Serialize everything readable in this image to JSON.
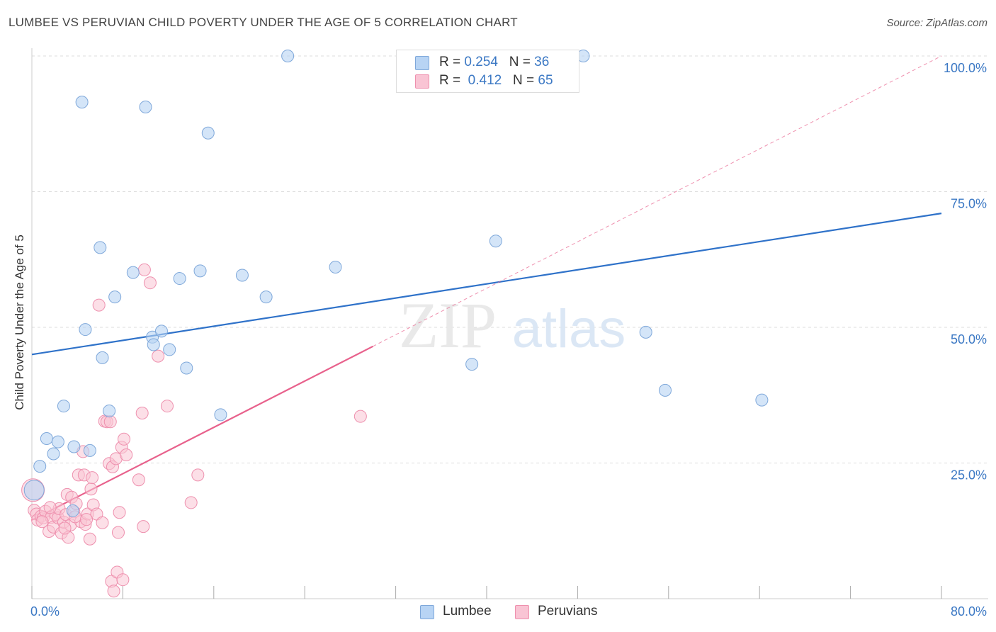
{
  "header": {
    "title": "LUMBEE VS PERUVIAN CHILD POVERTY UNDER THE AGE OF 5 CORRELATION CHART",
    "source": "Source: ZipAtlas.com"
  },
  "legend": {
    "rows": [
      {
        "r_label": "R = ",
        "r_value": "0.254",
        "n_label": "N = ",
        "n_value": "36"
      },
      {
        "r_label": "R = ",
        "r_value": "0.412",
        "n_label": "N = ",
        "n_value": "65"
      }
    ]
  },
  "bottom_legend": [
    "Lumbee",
    "Peruvians"
  ],
  "watermark": {
    "zip": "ZIP",
    "atlas": "atlas"
  },
  "colors": {
    "lumbee_fill": "#b8d4f4",
    "lumbee_stroke": "#7fa8da",
    "lumbee_line": "#2f72c9",
    "peru_fill": "#f9c4d4",
    "peru_stroke": "#ee90ae",
    "peru_line": "#e8618c",
    "grid": "#dddddd",
    "tick_label": "#3b78c4"
  },
  "chart_data": {
    "type": "scatter",
    "title": "LUMBEE VS PERUVIAN CHILD POVERTY UNDER THE AGE OF 5 CORRELATION CHART",
    "xlabel": "",
    "ylabel": "Child Poverty Under the Age of 5",
    "xlim": [
      0,
      80
    ],
    "ylim": [
      0,
      100
    ],
    "x_tick_labels": [
      "0.0%",
      "80.0%"
    ],
    "y_ticks": [
      25,
      50,
      75,
      100
    ],
    "y_tick_labels": [
      "25.0%",
      "50.0%",
      "75.0%",
      "100.0%"
    ],
    "grid": true,
    "legend_position": "top-center",
    "series": [
      {
        "name": "Lumbee",
        "points": [
          [
            0.2,
            20.0
          ],
          [
            0.7,
            24.4
          ],
          [
            1.3,
            29.5
          ],
          [
            1.9,
            26.7
          ],
          [
            2.3,
            28.9
          ],
          [
            2.8,
            35.5
          ],
          [
            3.7,
            28.0
          ],
          [
            3.6,
            16.2
          ],
          [
            4.4,
            91.5
          ],
          [
            4.7,
            49.6
          ],
          [
            5.1,
            27.3
          ],
          [
            6.0,
            64.7
          ],
          [
            6.2,
            44.4
          ],
          [
            6.8,
            34.6
          ],
          [
            7.3,
            55.6
          ],
          [
            8.9,
            60.1
          ],
          [
            10.0,
            90.6
          ],
          [
            10.6,
            48.2
          ],
          [
            10.7,
            46.8
          ],
          [
            11.4,
            49.3
          ],
          [
            12.1,
            45.9
          ],
          [
            13.0,
            59.0
          ],
          [
            13.6,
            42.5
          ],
          [
            14.8,
            60.4
          ],
          [
            15.5,
            85.8
          ],
          [
            16.6,
            33.9
          ],
          [
            18.5,
            59.6
          ],
          [
            20.6,
            55.6
          ],
          [
            22.5,
            100.0
          ],
          [
            26.7,
            61.1
          ],
          [
            38.7,
            43.2
          ],
          [
            40.8,
            65.9
          ],
          [
            48.5,
            100.0
          ],
          [
            54.0,
            49.1
          ],
          [
            55.7,
            38.4
          ],
          [
            64.2,
            36.6
          ]
        ],
        "trend": {
          "x": [
            0,
            80
          ],
          "y": [
            45.0,
            71.0
          ]
        }
      },
      {
        "name": "Peruvians",
        "points": [
          [
            0.1,
            20.0
          ],
          [
            0.2,
            16.3
          ],
          [
            0.4,
            15.6
          ],
          [
            0.5,
            14.5
          ],
          [
            0.8,
            15.2
          ],
          [
            1.0,
            14.9
          ],
          [
            1.2,
            16.1
          ],
          [
            1.5,
            12.4
          ],
          [
            1.7,
            15.0
          ],
          [
            1.9,
            13.2
          ],
          [
            2.1,
            15.5
          ],
          [
            2.3,
            14.9
          ],
          [
            2.4,
            16.6
          ],
          [
            2.6,
            12.1
          ],
          [
            2.8,
            14.1
          ],
          [
            3.0,
            15.5
          ],
          [
            3.1,
            19.2
          ],
          [
            3.2,
            11.3
          ],
          [
            3.4,
            13.6
          ],
          [
            3.5,
            18.7
          ],
          [
            3.7,
            16.0
          ],
          [
            3.9,
            17.5
          ],
          [
            4.1,
            22.8
          ],
          [
            4.3,
            14.2
          ],
          [
            4.5,
            27.1
          ],
          [
            4.6,
            22.8
          ],
          [
            4.7,
            13.7
          ],
          [
            4.9,
            15.6
          ],
          [
            5.1,
            11.0
          ],
          [
            5.2,
            20.2
          ],
          [
            5.3,
            22.3
          ],
          [
            5.4,
            17.3
          ],
          [
            5.7,
            15.6
          ],
          [
            5.9,
            54.1
          ],
          [
            6.2,
            14.0
          ],
          [
            6.4,
            32.7
          ],
          [
            6.6,
            32.6
          ],
          [
            6.8,
            24.9
          ],
          [
            6.9,
            32.6
          ],
          [
            7.0,
            3.2
          ],
          [
            7.1,
            24.3
          ],
          [
            7.2,
            1.4
          ],
          [
            7.4,
            25.8
          ],
          [
            7.5,
            4.9
          ],
          [
            7.6,
            12.2
          ],
          [
            7.7,
            15.9
          ],
          [
            7.9,
            27.9
          ],
          [
            8.0,
            3.5
          ],
          [
            8.1,
            29.4
          ],
          [
            8.3,
            26.5
          ],
          [
            9.4,
            21.9
          ],
          [
            9.7,
            34.2
          ],
          [
            9.8,
            13.3
          ],
          [
            9.9,
            60.6
          ],
          [
            10.4,
            58.2
          ],
          [
            11.1,
            44.7
          ],
          [
            11.9,
            35.5
          ],
          [
            14.0,
            17.7
          ],
          [
            14.6,
            22.8
          ],
          [
            28.9,
            33.6
          ],
          [
            0.9,
            14.2
          ],
          [
            1.6,
            16.8
          ],
          [
            2.9,
            13.0
          ],
          [
            3.8,
            15.1
          ],
          [
            4.8,
            14.6
          ]
        ],
        "trend": {
          "x": [
            0,
            30
          ],
          "y": [
            14.5,
            46.5
          ]
        },
        "trend_extension": {
          "x": [
            30,
            80
          ],
          "y": [
            46.5,
            100.0
          ]
        }
      }
    ]
  }
}
